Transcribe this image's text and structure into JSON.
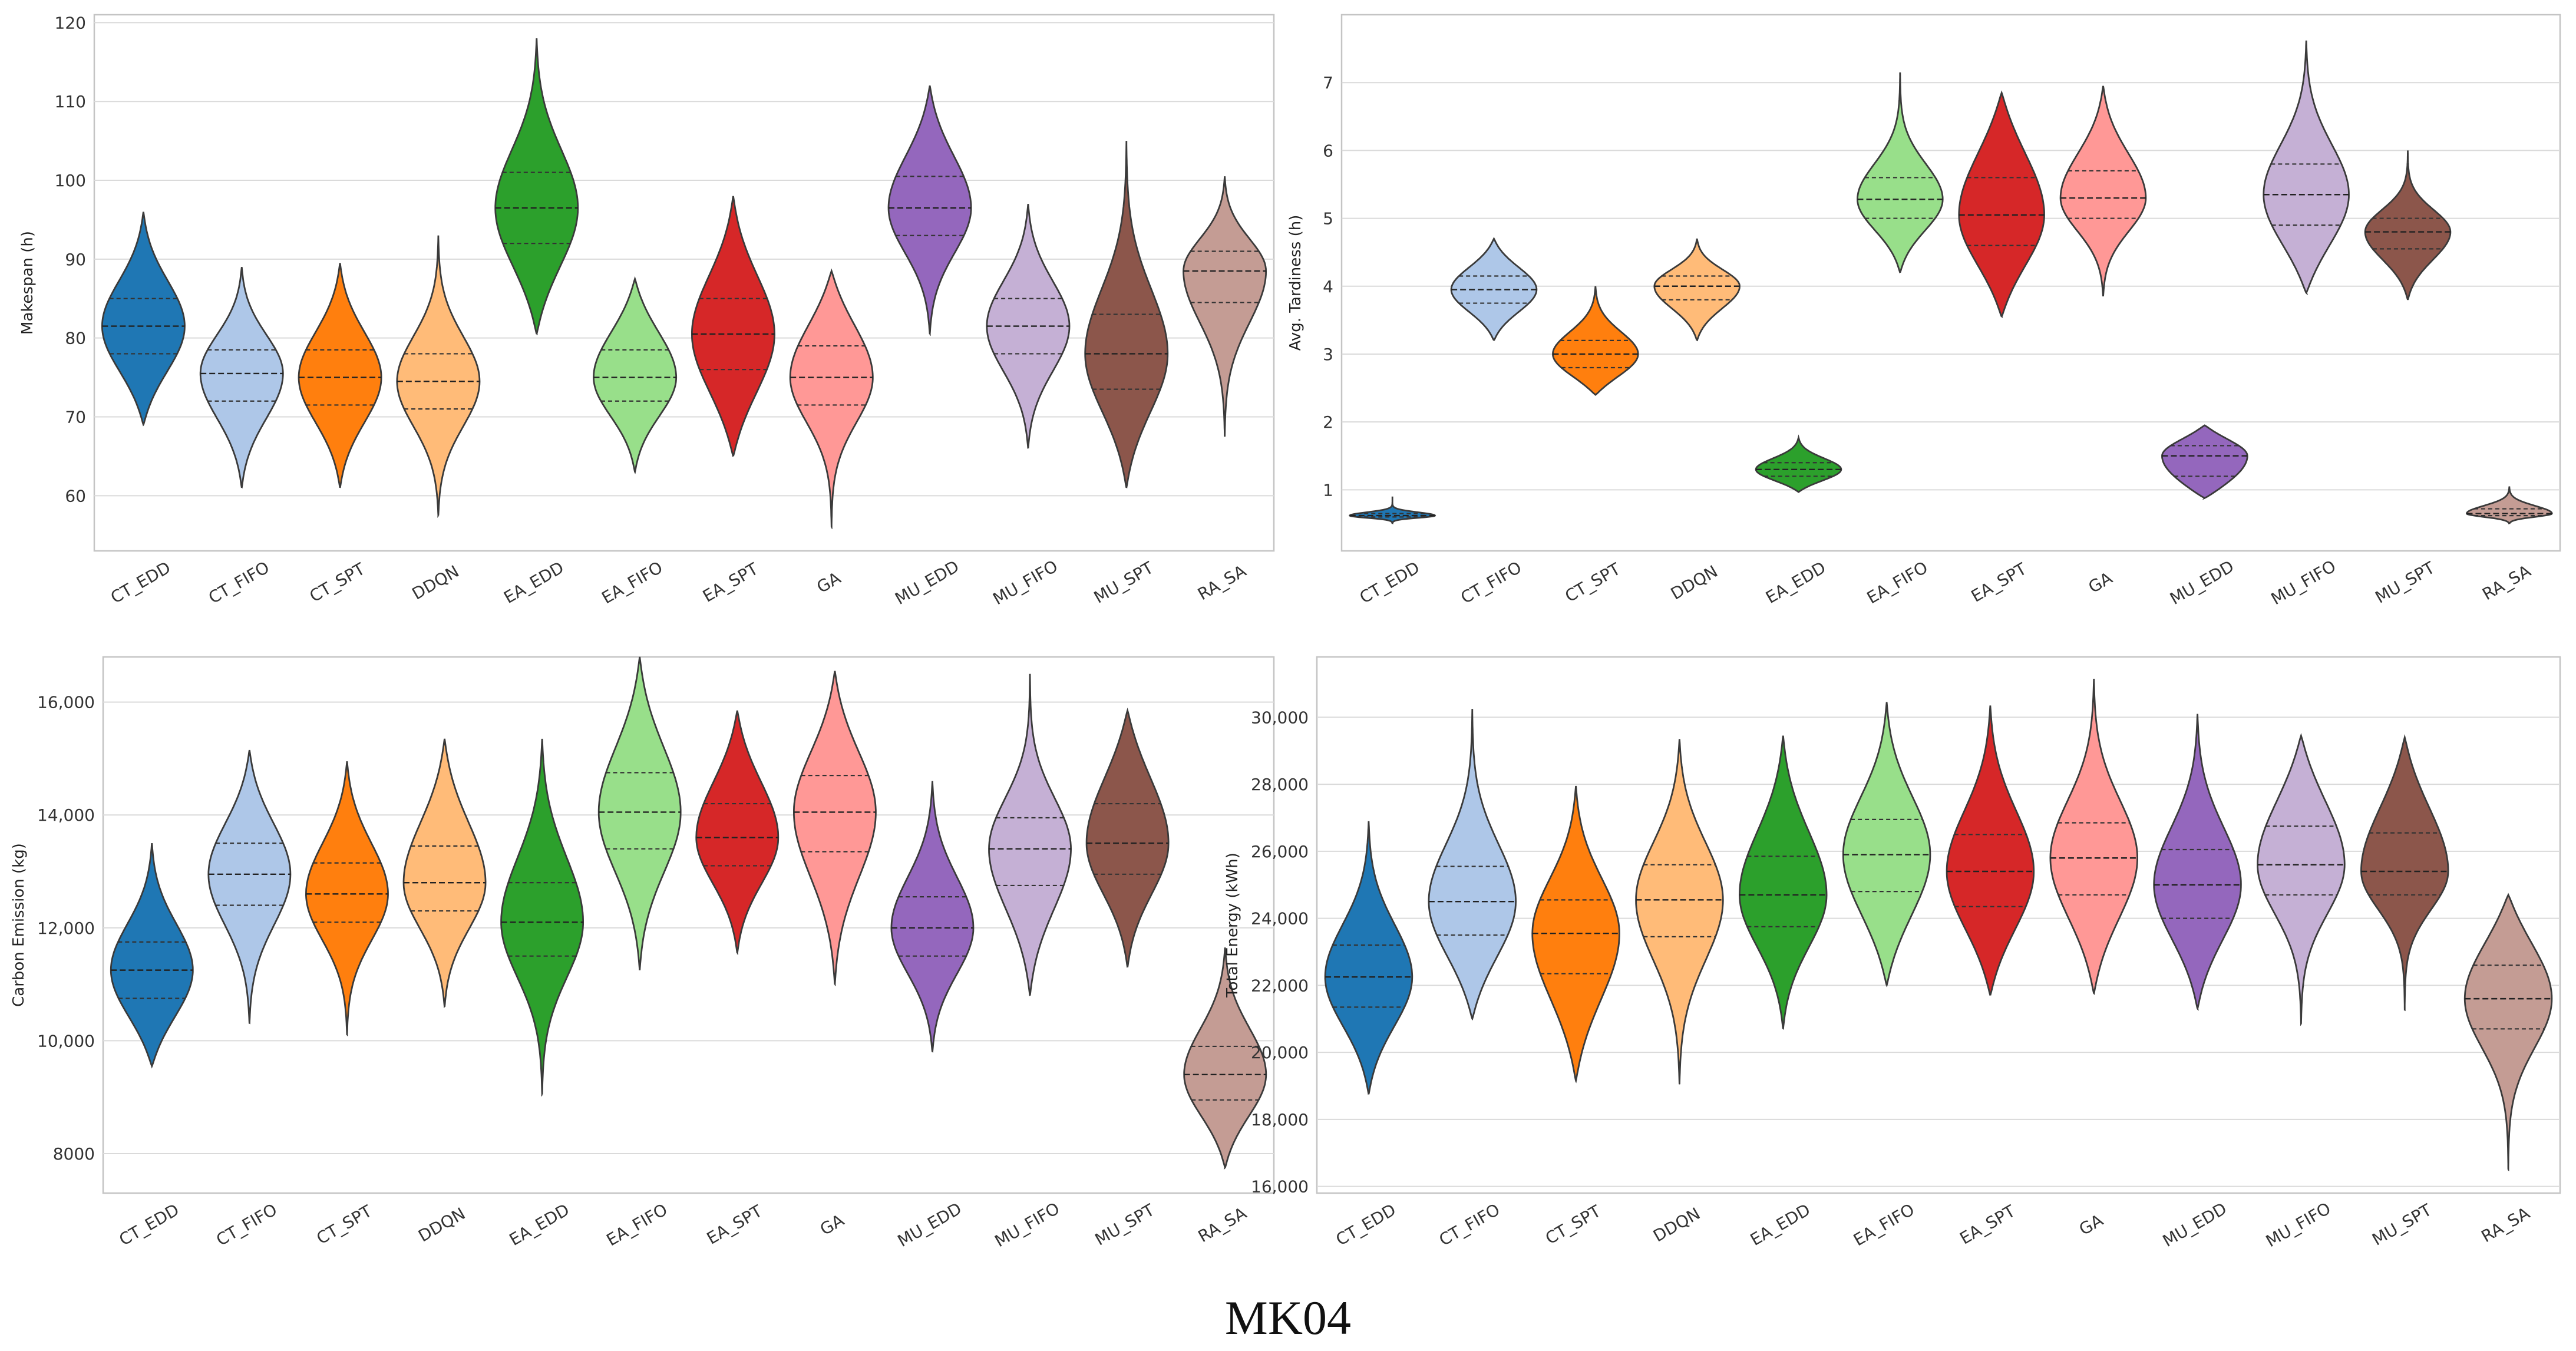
{
  "caption": "MK04",
  "chart_data": [
    {
      "type": "violin",
      "ylabel": "Makespan (h)",
      "ylim": [
        53,
        121
      ],
      "yticks": [
        60,
        70,
        80,
        90,
        100,
        110,
        120
      ],
      "ytick_labels": [
        "60",
        "70",
        "80",
        "90",
        "100",
        "110",
        "120"
      ],
      "categories": [
        "CT_EDD",
        "CT_FIFO",
        "CT_SPT",
        "DDQN",
        "EA_EDD",
        "EA_FIFO",
        "EA_SPT",
        "GA",
        "MU_EDD",
        "MU_FIFO",
        "MU_SPT",
        "RA_SA"
      ],
      "colors": [
        "#1f77b4",
        "#aec7e8",
        "#ff7f0e",
        "#ffbb78",
        "#2ca02c",
        "#98df8a",
        "#d62728",
        "#ff9896",
        "#9467bd",
        "#c5b0d5",
        "#8c564b",
        "#c49c94"
      ],
      "values": [
        {
          "min": 69,
          "max": 96,
          "q1": 78,
          "median": 81.5,
          "q3": 85
        },
        {
          "min": 61,
          "max": 89,
          "q1": 72,
          "median": 75.5,
          "q3": 78.5
        },
        {
          "min": 61,
          "max": 89.5,
          "q1": 71.5,
          "median": 75,
          "q3": 78.5
        },
        {
          "min": 57.5,
          "max": 93,
          "q1": 71,
          "median": 74.5,
          "q3": 78
        },
        {
          "min": 80.5,
          "max": 118,
          "q1": 92,
          "median": 96.5,
          "q3": 101
        },
        {
          "min": 63,
          "max": 87.5,
          "q1": 72,
          "median": 75,
          "q3": 78.5
        },
        {
          "min": 65,
          "max": 98,
          "q1": 76,
          "median": 80.5,
          "q3": 85
        },
        {
          "min": 56,
          "max": 88.5,
          "q1": 71.5,
          "median": 75,
          "q3": 79
        },
        {
          "min": 80.5,
          "max": 112,
          "q1": 93,
          "median": 96.5,
          "q3": 100.5
        },
        {
          "min": 66,
          "max": 97,
          "q1": 78,
          "median": 81.5,
          "q3": 85
        },
        {
          "min": 61,
          "max": 105,
          "q1": 73.5,
          "median": 78,
          "q3": 83
        },
        {
          "min": 67.5,
          "max": 100.5,
          "q1": 84.5,
          "median": 88.5,
          "q3": 91
        }
      ]
    },
    {
      "type": "violin",
      "ylabel": "Avg. Tardiness (h)",
      "ylim": [
        0.1,
        8.0
      ],
      "yticks": [
        1,
        2,
        3,
        4,
        5,
        6,
        7
      ],
      "ytick_labels": [
        "1",
        "2",
        "3",
        "4",
        "5",
        "6",
        "7"
      ],
      "categories": [
        "CT_EDD",
        "CT_FIFO",
        "CT_SPT",
        "DDQN",
        "EA_EDD",
        "EA_FIFO",
        "EA_SPT",
        "GA",
        "MU_EDD",
        "MU_FIFO",
        "MU_SPT",
        "RA_SA"
      ],
      "colors": [
        "#1f77b4",
        "#aec7e8",
        "#ff7f0e",
        "#ffbb78",
        "#2ca02c",
        "#98df8a",
        "#d62728",
        "#ff9896",
        "#9467bd",
        "#c5b0d5",
        "#8c564b",
        "#c49c94"
      ],
      "values": [
        {
          "min": 0.5,
          "max": 0.9,
          "q1": 0.6,
          "median": 0.62,
          "q3": 0.65
        },
        {
          "min": 3.2,
          "max": 4.7,
          "q1": 3.75,
          "median": 3.95,
          "q3": 4.15
        },
        {
          "min": 2.4,
          "max": 4.0,
          "q1": 2.8,
          "median": 3.0,
          "q3": 3.2
        },
        {
          "min": 3.2,
          "max": 4.7,
          "q1": 3.8,
          "median": 4.0,
          "q3": 4.15
        },
        {
          "min": 0.97,
          "max": 1.77,
          "q1": 1.2,
          "median": 1.3,
          "q3": 1.4
        },
        {
          "min": 4.2,
          "max": 7.15,
          "q1": 5.0,
          "median": 5.28,
          "q3": 5.6
        },
        {
          "min": 3.55,
          "max": 6.85,
          "q1": 4.6,
          "median": 5.05,
          "q3": 5.6
        },
        {
          "min": 3.85,
          "max": 6.95,
          "q1": 5.0,
          "median": 5.3,
          "q3": 5.7
        },
        {
          "min": 0.88,
          "max": 1.95,
          "q1": 1.2,
          "median": 1.5,
          "q3": 1.65
        },
        {
          "min": 3.9,
          "max": 7.62,
          "q1": 4.9,
          "median": 5.35,
          "q3": 5.8
        },
        {
          "min": 3.8,
          "max": 6.0,
          "q1": 4.55,
          "median": 4.8,
          "q3": 5.0
        },
        {
          "min": 0.5,
          "max": 1.05,
          "q1": 0.62,
          "median": 0.65,
          "q3": 0.72
        }
      ]
    },
    {
      "type": "violin",
      "ylabel": "Carbon Emission (kg)",
      "ylim": [
        7300,
        16800
      ],
      "yticks": [
        8000,
        10000,
        12000,
        14000,
        16000
      ],
      "ytick_labels": [
        "8000",
        "10,000",
        "12,000",
        "14,000",
        "16,000"
      ],
      "categories": [
        "CT_EDD",
        "CT_FIFO",
        "CT_SPT",
        "DDQN",
        "EA_EDD",
        "EA_FIFO",
        "EA_SPT",
        "GA",
        "MU_EDD",
        "MU_FIFO",
        "MU_SPT",
        "RA_SA"
      ],
      "colors": [
        "#1f77b4",
        "#aec7e8",
        "#ff7f0e",
        "#ffbb78",
        "#2ca02c",
        "#98df8a",
        "#d62728",
        "#ff9896",
        "#9467bd",
        "#c5b0d5",
        "#8c564b",
        "#c49c94"
      ],
      "values": [
        {
          "min": 9550,
          "max": 13500,
          "q1": 10750,
          "median": 11250,
          "q3": 11750
        },
        {
          "min": 10300,
          "max": 15150,
          "q1": 12400,
          "median": 12950,
          "q3": 13500
        },
        {
          "min": 10100,
          "max": 14950,
          "q1": 12100,
          "median": 12600,
          "q3": 13150
        },
        {
          "min": 10600,
          "max": 15350,
          "q1": 12300,
          "median": 12800,
          "q3": 13450
        },
        {
          "min": 9050,
          "max": 15350,
          "q1": 11500,
          "median": 12100,
          "q3": 12800
        },
        {
          "min": 11250,
          "max": 16800,
          "q1": 13400,
          "median": 14050,
          "q3": 14750
        },
        {
          "min": 11550,
          "max": 15850,
          "q1": 13100,
          "median": 13600,
          "q3": 14200
        },
        {
          "min": 11000,
          "max": 16550,
          "q1": 13350,
          "median": 14050,
          "q3": 14700
        },
        {
          "min": 9800,
          "max": 14600,
          "q1": 11500,
          "median": 12000,
          "q3": 12550
        },
        {
          "min": 10800,
          "max": 16500,
          "q1": 12750,
          "median": 13400,
          "q3": 13950
        },
        {
          "min": 11300,
          "max": 15850,
          "q1": 12950,
          "median": 13500,
          "q3": 14200
        },
        {
          "min": 7750,
          "max": 11650,
          "q1": 8950,
          "median": 9400,
          "q3": 9900
        }
      ]
    },
    {
      "type": "violin",
      "ylabel": "Total Energy (kWh)",
      "ylim": [
        15800,
        31800
      ],
      "yticks": [
        16000,
        18000,
        20000,
        22000,
        24000,
        26000,
        28000,
        30000
      ],
      "ytick_labels": [
        "16,000",
        "18,000",
        "20,000",
        "22,000",
        "24,000",
        "26,000",
        "28,000",
        "30,000"
      ],
      "categories": [
        "CT_EDD",
        "CT_FIFO",
        "CT_SPT",
        "DDQN",
        "EA_EDD",
        "EA_FIFO",
        "EA_SPT",
        "GA",
        "MU_EDD",
        "MU_FIFO",
        "MU_SPT",
        "RA_SA"
      ],
      "colors": [
        "#1f77b4",
        "#aec7e8",
        "#ff7f0e",
        "#ffbb78",
        "#2ca02c",
        "#98df8a",
        "#d62728",
        "#ff9896",
        "#9467bd",
        "#c5b0d5",
        "#8c564b",
        "#c49c94"
      ],
      "values": [
        {
          "min": 18750,
          "max": 26900,
          "q1": 21350,
          "median": 22250,
          "q3": 23200
        },
        {
          "min": 21000,
          "max": 30250,
          "q1": 23500,
          "median": 24500,
          "q3": 25550
        },
        {
          "min": 19150,
          "max": 27950,
          "q1": 22350,
          "median": 23550,
          "q3": 24550
        },
        {
          "min": 19050,
          "max": 29350,
          "q1": 23450,
          "median": 24550,
          "q3": 25600
        },
        {
          "min": 20700,
          "max": 29450,
          "q1": 23750,
          "median": 24700,
          "q3": 25850
        },
        {
          "min": 22000,
          "max": 30450,
          "q1": 24800,
          "median": 25900,
          "q3": 26950
        },
        {
          "min": 21700,
          "max": 30350,
          "q1": 24350,
          "median": 25400,
          "q3": 26500
        },
        {
          "min": 21750,
          "max": 31150,
          "q1": 24700,
          "median": 25800,
          "q3": 26850
        },
        {
          "min": 21300,
          "max": 30100,
          "q1": 24000,
          "median": 25000,
          "q3": 26050
        },
        {
          "min": 20850,
          "max": 29450,
          "q1": 24700,
          "median": 25600,
          "q3": 26750
        },
        {
          "min": 21250,
          "max": 29400,
          "q1": 24700,
          "median": 25400,
          "q3": 26550
        },
        {
          "min": 16500,
          "max": 24700,
          "q1": 20700,
          "median": 21600,
          "q3": 22600
        }
      ]
    }
  ]
}
